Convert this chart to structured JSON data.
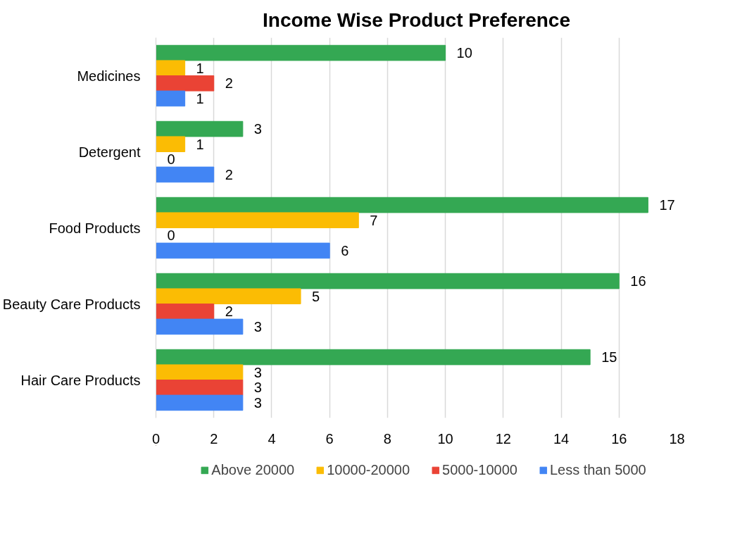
{
  "chart_data": {
    "type": "bar",
    "orientation": "horizontal",
    "title": "Income Wise Product Preference",
    "categories": [
      "Medicines",
      "Detergent",
      "Food Products",
      "Beauty Care Products",
      "Hair Care Products"
    ],
    "series": [
      {
        "name": "Above 20000",
        "color": "#34a853",
        "values": [
          10,
          3,
          17,
          16,
          15
        ]
      },
      {
        "name": "10000-20000",
        "color": "#fbbc04",
        "values": [
          1,
          1,
          7,
          5,
          3
        ]
      },
      {
        "name": "5000-10000",
        "color": "#ea4335",
        "values": [
          2,
          0,
          0,
          2,
          3
        ]
      },
      {
        "name": "Less than 5000",
        "color": "#4285f4",
        "values": [
          1,
          2,
          6,
          3,
          3
        ]
      }
    ],
    "xlim": [
      0,
      18
    ],
    "xticks": [
      0,
      2,
      4,
      6,
      8,
      10,
      12,
      14,
      16,
      18
    ],
    "grid": "x",
    "data_labels": true,
    "legend": "bottom"
  }
}
